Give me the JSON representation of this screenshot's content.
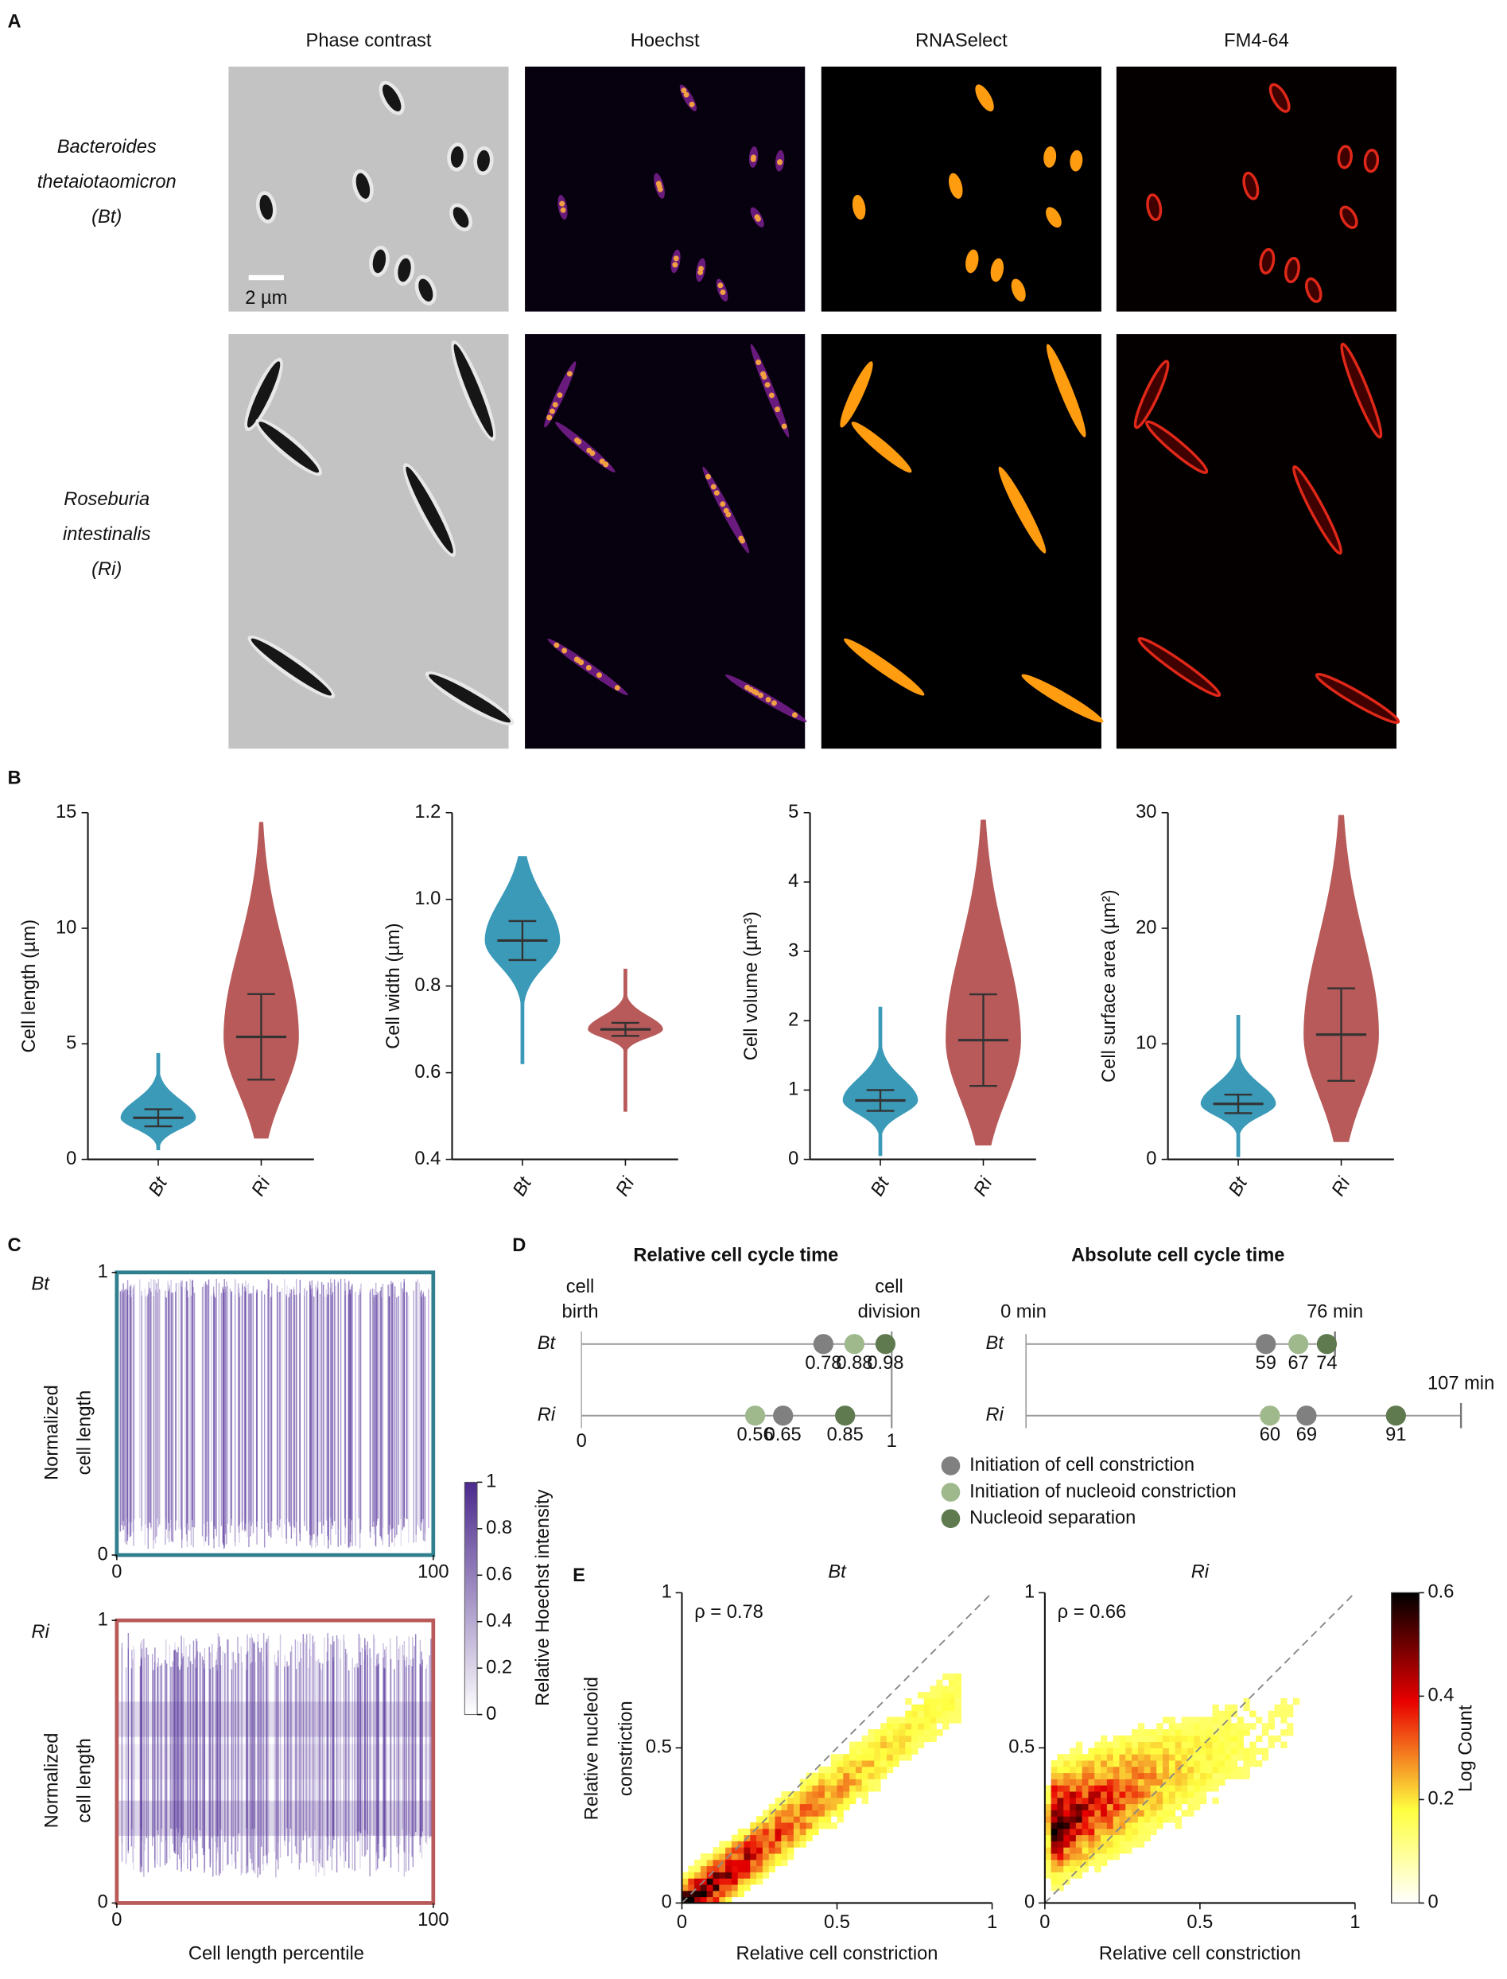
{
  "figure": {
    "strain_colors": [
      "#2f7f8f",
      "#b85a5a"
    ],
    "A": {
      "label": "A",
      "columns": [
        "Phase contrast",
        "Hoechst",
        "RNASelect",
        "FM4-64"
      ],
      "column_colors": [
        "#111111",
        "#8b2c8b",
        "#f08c00",
        "#d0401c"
      ],
      "rows": [
        {
          "lines": [
            "Bacteroides",
            "thetaiotaomicron",
            "(Bt)"
          ]
        },
        {
          "lines": [
            "Roseburia",
            "intestinalis",
            "(Ri)"
          ]
        }
      ],
      "scale_bar": "2 µm"
    },
    "B": {
      "label": "B",
      "categories": [
        "Bt",
        "Ri"
      ],
      "colors": [
        "#3a9ab8",
        "#b85a5a"
      ],
      "charts": [
        {
          "ylabel": "Cell length (µm)",
          "ylim": [
            0,
            15
          ],
          "yticks": [
            0,
            5,
            10,
            15
          ],
          "series": [
            {
              "mean": 1.8,
              "error": 0.37,
              "min": 0.4,
              "max": 4.6
            },
            {
              "mean": 5.3,
              "error": 1.85,
              "min": 0.9,
              "max": 14.6
            }
          ]
        },
        {
          "ylabel": "Cell width (µm)",
          "ylim": [
            0.4,
            1.2
          ],
          "yticks": [
            0.4,
            0.6,
            0.8,
            {
              "value": 1,
              "label": "1.0"
            },
            1.2
          ],
          "series": [
            {
              "mean": 0.905,
              "error": 0.045,
              "min": 0.62,
              "max": 1.1
            },
            {
              "mean": 0.7,
              "error": 0.015,
              "min": 0.51,
              "max": 0.84
            }
          ]
        },
        {
          "ylabel": "Cell volume (µm³)",
          "ylim": [
            0,
            5
          ],
          "yticks": [
            0,
            1,
            2,
            3,
            4,
            5
          ],
          "series": [
            {
              "mean": 0.85,
              "error": 0.15,
              "min": 0.05,
              "max": 2.2
            },
            {
              "mean": 1.72,
              "error": 0.66,
              "min": 0.2,
              "max": 4.9
            }
          ]
        },
        {
          "ylabel": "Cell surface area (µm²)",
          "ylim": [
            0,
            30
          ],
          "yticks": [
            0,
            10,
            20,
            30
          ],
          "series": [
            {
              "mean": 4.8,
              "error": 0.8,
              "min": 0.2,
              "max": 12.5
            },
            {
              "mean": 10.8,
              "error": 4,
              "min": 1.5,
              "max": 29.8
            }
          ]
        }
      ]
    },
    "C": {
      "label": "C",
      "panels": [
        {
          "name": "Bt"
        },
        {
          "name": "Ri"
        }
      ],
      "ylabel": [
        "Normalized",
        "cell length"
      ],
      "xlim": [
        0,
        100
      ],
      "ylim": [
        0,
        1
      ],
      "yticks": [
        0,
        1
      ],
      "xticks": [
        0,
        100
      ],
      "xlabel": "Cell length percentile",
      "colorbar": {
        "label": "Relative Hoechst intensity",
        "lim": [
          0,
          1
        ],
        "ticks": [
          0,
          0.2,
          0.4,
          0.6,
          0.8,
          1
        ],
        "colors": [
          "#ffffff",
          "#4b2a8c"
        ]
      }
    },
    "D": {
      "label": "D",
      "events": [
        {
          "name": "Initiation of cell constriction",
          "color": "#808080"
        },
        {
          "name": "Initiation of nucleoid constriction",
          "color": "#9fb88c"
        },
        {
          "name": "Nucleoid separation",
          "color": "#5f7a4f"
        }
      ],
      "relative": {
        "title": "Relative cell cycle time",
        "start": [
          "cell",
          "birth"
        ],
        "end": [
          "cell",
          "division"
        ],
        "xlim": [
          0,
          1
        ],
        "xticks": [
          0,
          1
        ],
        "series": [
          {
            "name": "Bt",
            "values": [
              0.78,
              0.88,
              0.98
            ]
          },
          {
            "name": "Ri",
            "values": [
              0.65,
              0.56,
              0.85
            ]
          }
        ]
      },
      "absolute": {
        "title": "Absolute cell cycle time",
        "start": {
          "value": 0,
          "label": "0 min"
        },
        "series": [
          {
            "name": "Bt",
            "values": [
              59,
              67,
              74
            ],
            "end": {
              "value": 76,
              "label": "76 min"
            }
          },
          {
            "name": "Ri",
            "values": [
              69,
              60,
              91
            ],
            "end": {
              "value": 107,
              "label": "107 min"
            }
          }
        ]
      }
    },
    "E": {
      "label": "E",
      "xlabel": "Relative cell constriction",
      "ylabel": [
        "Relative nucleoid",
        "constriction"
      ],
      "xlim": [
        0,
        1
      ],
      "ylim": [
        0,
        1
      ],
      "xticks": [
        0,
        0.5,
        1
      ],
      "yticks": [
        0,
        0.5,
        1
      ],
      "plots": [
        {
          "name": "Bt",
          "rho": {
            "value": 0.78,
            "label": "ρ = 0.78"
          }
        },
        {
          "name": "Ri",
          "rho": {
            "value": 0.66,
            "label": "ρ = 0.66"
          }
        }
      ],
      "colorbar": {
        "label": "Log Count",
        "lim": [
          0,
          0.6
        ],
        "ticks": [
          0,
          0.2,
          0.4,
          0.6
        ]
      }
    }
  }
}
